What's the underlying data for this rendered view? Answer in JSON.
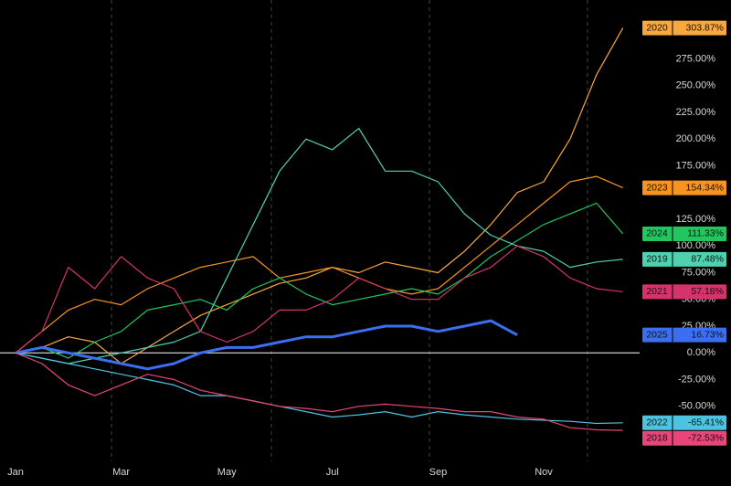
{
  "chart_data": {
    "type": "line",
    "categories": [
      "Jan",
      null,
      null,
      null,
      "Mar",
      null,
      null,
      null,
      "May",
      null,
      null,
      null,
      "Jul",
      null,
      null,
      null,
      "Sep",
      null,
      null,
      null,
      "Nov",
      null,
      null,
      null
    ],
    "ylim": [
      -110,
      330
    ],
    "yticks": [
      {
        "value": -50,
        "label": "-50.00%"
      },
      {
        "value": -25,
        "label": "-25.00%"
      },
      {
        "value": 0,
        "label": "0.00%"
      },
      {
        "value": 25,
        "label": "25.00%"
      },
      {
        "value": 50,
        "label": "50.00%"
      },
      {
        "value": 75,
        "label": "75.00%"
      },
      {
        "value": 100,
        "label": "100.00%"
      },
      {
        "value": 125,
        "label": "125.00%"
      },
      {
        "value": 150,
        "label": "150.00%"
      },
      {
        "value": 175,
        "label": "175.00%"
      },
      {
        "value": 200,
        "label": "200.00%"
      },
      {
        "value": 225,
        "label": "225.00%"
      },
      {
        "value": 250,
        "label": "250.00%"
      },
      {
        "value": 275,
        "label": "275.00%"
      }
    ],
    "series": [
      {
        "name": "2020",
        "color": "#f7a83e",
        "values": [
          0,
          5,
          15,
          10,
          -10,
          5,
          20,
          35,
          45,
          55,
          65,
          70,
          80,
          75,
          85,
          80,
          75,
          95,
          120,
          150,
          160,
          200,
          260,
          303.87
        ],
        "value_labels": [
          null,
          null,
          null,
          null,
          null,
          null,
          null,
          null,
          null,
          null,
          null,
          null,
          null,
          null,
          null,
          null,
          null,
          null,
          null,
          null,
          null,
          null,
          null,
          "303.87%"
        ]
      },
      {
        "name": "2023",
        "color": "#f7931e",
        "values": [
          0,
          20,
          40,
          50,
          45,
          60,
          70,
          80,
          85,
          90,
          70,
          75,
          80,
          70,
          60,
          55,
          60,
          80,
          100,
          120,
          140,
          160,
          165,
          154.34
        ],
        "value_labels": [
          null,
          null,
          null,
          null,
          null,
          null,
          null,
          null,
          null,
          null,
          null,
          null,
          null,
          null,
          null,
          null,
          null,
          null,
          null,
          null,
          null,
          null,
          null,
          "154.34%"
        ]
      },
      {
        "name": "2024",
        "color": "#22c55e",
        "values": [
          0,
          5,
          -5,
          10,
          20,
          40,
          45,
          50,
          40,
          60,
          70,
          55,
          45,
          50,
          55,
          60,
          55,
          70,
          90,
          105,
          120,
          130,
          140,
          111.33
        ],
        "value_labels": [
          null,
          null,
          null,
          null,
          null,
          null,
          null,
          null,
          null,
          null,
          null,
          null,
          null,
          null,
          null,
          null,
          null,
          null,
          null,
          null,
          null,
          null,
          null,
          "111.33%"
        ]
      },
      {
        "name": "2019",
        "color": "#4fd1b0",
        "values": [
          0,
          -5,
          -10,
          -5,
          0,
          5,
          10,
          20,
          70,
          120,
          170,
          200,
          190,
          210,
          170,
          170,
          160,
          130,
          110,
          100,
          95,
          80,
          85,
          87.48
        ],
        "value_labels": [
          null,
          null,
          null,
          null,
          null,
          null,
          null,
          null,
          null,
          null,
          null,
          null,
          null,
          null,
          null,
          null,
          null,
          null,
          null,
          null,
          null,
          null,
          null,
          "87.48%"
        ]
      },
      {
        "name": "2021",
        "color": "#d6336c",
        "values": [
          0,
          20,
          80,
          60,
          90,
          70,
          60,
          20,
          10,
          20,
          40,
          40,
          50,
          70,
          60,
          50,
          50,
          70,
          80,
          100,
          90,
          70,
          60,
          57.18
        ],
        "value_labels": [
          null,
          null,
          null,
          null,
          null,
          null,
          null,
          null,
          null,
          null,
          null,
          null,
          null,
          null,
          null,
          null,
          null,
          null,
          null,
          null,
          null,
          null,
          null,
          "57.18%"
        ]
      },
      {
        "name": "2025",
        "color": "#3b6ff0",
        "values": [
          0,
          5,
          0,
          -5,
          -10,
          -15,
          -10,
          0,
          5,
          5,
          10,
          15,
          15,
          20,
          25,
          25,
          20,
          25,
          30,
          16.73,
          null,
          null,
          null,
          null
        ],
        "value_labels": [
          null,
          null,
          null,
          null,
          null,
          null,
          null,
          null,
          null,
          null,
          null,
          null,
          null,
          null,
          null,
          null,
          null,
          null,
          null,
          "16.73%",
          null,
          null,
          null,
          null
        ]
      },
      {
        "name": "2022",
        "color": "#4cc3e0",
        "values": [
          0,
          -5,
          -10,
          -15,
          -20,
          -25,
          -30,
          -40,
          -40,
          -45,
          -50,
          -55,
          -60,
          -58,
          -55,
          -60,
          -55,
          -58,
          -60,
          -62,
          -63,
          -64,
          -66,
          -65.41
        ],
        "value_labels": [
          null,
          null,
          null,
          null,
          null,
          null,
          null,
          null,
          null,
          null,
          null,
          null,
          null,
          null,
          null,
          null,
          null,
          null,
          null,
          null,
          null,
          null,
          null,
          "-65.41%"
        ]
      },
      {
        "name": "2018",
        "color": "#e8457a",
        "values": [
          0,
          -10,
          -30,
          -40,
          -30,
          -20,
          -25,
          -35,
          -40,
          -45,
          -50,
          -52,
          -55,
          -50,
          -48,
          -50,
          -52,
          -55,
          -55,
          -60,
          -62,
          -70,
          -72,
          -72.53
        ],
        "value_labels": [
          null,
          null,
          null,
          null,
          null,
          null,
          null,
          null,
          null,
          null,
          null,
          null,
          null,
          null,
          null,
          null,
          null,
          null,
          null,
          null,
          null,
          null,
          null,
          "-72.53%"
        ]
      }
    ]
  }
}
